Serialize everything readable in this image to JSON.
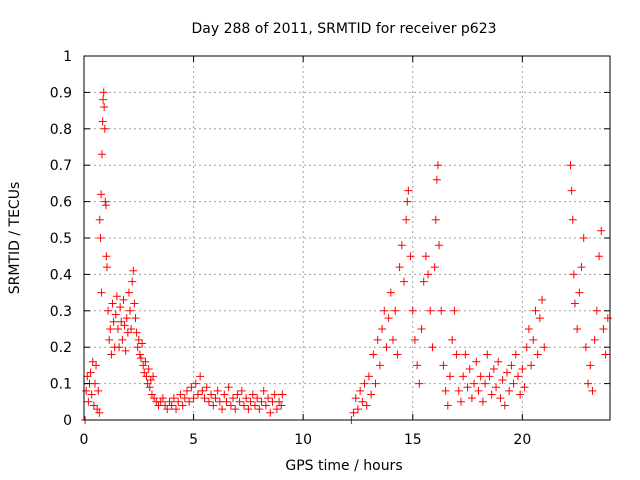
{
  "chart_data": {
    "type": "scatter",
    "title": "Day 288 of 2011, SRMTID for receiver p623",
    "xlabel": "GPS time / hours",
    "ylabel": "SRMTID / TECUs",
    "xlim": [
      0,
      24
    ],
    "ylim": [
      0,
      1
    ],
    "xticks": [
      0,
      5,
      10,
      15,
      20
    ],
    "yticks": [
      0,
      0.1,
      0.2,
      0.3,
      0.4,
      0.5,
      0.6,
      0.7,
      0.8,
      0.9,
      1
    ],
    "ytick_labels": [
      "0",
      "0.1",
      "0.2",
      "0.3",
      "0.4",
      "0.5",
      "0.6",
      "0.7",
      "0.8",
      "0.9",
      "1"
    ],
    "grid": true,
    "marker": "+",
    "marker_color": "#ff0000",
    "series": [
      {
        "name": "SRMTID",
        "points": [
          [
            0.05,
            0.0
          ],
          [
            0.1,
            0.08
          ],
          [
            0.15,
            0.12
          ],
          [
            0.2,
            0.05
          ],
          [
            0.25,
            0.1
          ],
          [
            0.3,
            0.13
          ],
          [
            0.35,
            0.07
          ],
          [
            0.4,
            0.16
          ],
          [
            0.45,
            0.04
          ],
          [
            0.5,
            0.1
          ],
          [
            0.55,
            0.15
          ],
          [
            0.6,
            0.03
          ],
          [
            0.65,
            0.08
          ],
          [
            0.7,
            0.02
          ],
          [
            0.72,
            0.55
          ],
          [
            0.75,
            0.5
          ],
          [
            0.78,
            0.62
          ],
          [
            0.8,
            0.35
          ],
          [
            0.82,
            0.73
          ],
          [
            0.85,
            0.82
          ],
          [
            0.87,
            0.88
          ],
          [
            0.9,
            0.9
          ],
          [
            0.92,
            0.86
          ],
          [
            0.95,
            0.8
          ],
          [
            0.97,
            0.6
          ],
          [
            1.0,
            0.59
          ],
          [
            1.02,
            0.45
          ],
          [
            1.05,
            0.42
          ],
          [
            1.1,
            0.3
          ],
          [
            1.15,
            0.22
          ],
          [
            1.2,
            0.25
          ],
          [
            1.25,
            0.18
          ],
          [
            1.3,
            0.32
          ],
          [
            1.35,
            0.27
          ],
          [
            1.4,
            0.2
          ],
          [
            1.45,
            0.29
          ],
          [
            1.5,
            0.34
          ],
          [
            1.55,
            0.25
          ],
          [
            1.6,
            0.2
          ],
          [
            1.65,
            0.31
          ],
          [
            1.7,
            0.27
          ],
          [
            1.75,
            0.22
          ],
          [
            1.8,
            0.33
          ],
          [
            1.85,
            0.26
          ],
          [
            1.9,
            0.19
          ],
          [
            1.95,
            0.28
          ],
          [
            2.0,
            0.24
          ],
          [
            2.05,
            0.35
          ],
          [
            2.1,
            0.3
          ],
          [
            2.15,
            0.25
          ],
          [
            2.2,
            0.38
          ],
          [
            2.25,
            0.41
          ],
          [
            2.3,
            0.32
          ],
          [
            2.35,
            0.28
          ],
          [
            2.4,
            0.24
          ],
          [
            2.45,
            0.2
          ],
          [
            2.5,
            0.22
          ],
          [
            2.55,
            0.18
          ],
          [
            2.6,
            0.17
          ],
          [
            2.65,
            0.21
          ],
          [
            2.7,
            0.15
          ],
          [
            2.75,
            0.13
          ],
          [
            2.8,
            0.16
          ],
          [
            2.85,
            0.12
          ],
          [
            2.9,
            0.1
          ],
          [
            2.95,
            0.14
          ],
          [
            3.0,
            0.09
          ],
          [
            3.05,
            0.11
          ],
          [
            3.1,
            0.07
          ],
          [
            3.15,
            0.12
          ],
          [
            3.2,
            0.06
          ],
          [
            3.3,
            0.05
          ],
          [
            3.4,
            0.04
          ],
          [
            3.5,
            0.05
          ],
          [
            3.6,
            0.06
          ],
          [
            3.7,
            0.04
          ],
          [
            3.8,
            0.03
          ],
          [
            3.9,
            0.05
          ],
          [
            4.0,
            0.04
          ],
          [
            4.1,
            0.06
          ],
          [
            4.2,
            0.03
          ],
          [
            4.3,
            0.05
          ],
          [
            4.4,
            0.07
          ],
          [
            4.5,
            0.04
          ],
          [
            4.6,
            0.06
          ],
          [
            4.7,
            0.08
          ],
          [
            4.8,
            0.05
          ],
          [
            4.9,
            0.09
          ],
          [
            5.0,
            0.06
          ],
          [
            5.1,
            0.1
          ],
          [
            5.2,
            0.07
          ],
          [
            5.3,
            0.12
          ],
          [
            5.4,
            0.08
          ],
          [
            5.5,
            0.06
          ],
          [
            5.6,
            0.09
          ],
          [
            5.7,
            0.05
          ],
          [
            5.8,
            0.07
          ],
          [
            5.9,
            0.04
          ],
          [
            6.0,
            0.06
          ],
          [
            6.1,
            0.08
          ],
          [
            6.2,
            0.05
          ],
          [
            6.3,
            0.03
          ],
          [
            6.4,
            0.07
          ],
          [
            6.5,
            0.05
          ],
          [
            6.6,
            0.09
          ],
          [
            6.7,
            0.04
          ],
          [
            6.8,
            0.06
          ],
          [
            6.9,
            0.03
          ],
          [
            7.0,
            0.07
          ],
          [
            7.1,
            0.05
          ],
          [
            7.2,
            0.08
          ],
          [
            7.3,
            0.04
          ],
          [
            7.4,
            0.06
          ],
          [
            7.5,
            0.03
          ],
          [
            7.6,
            0.05
          ],
          [
            7.7,
            0.07
          ],
          [
            7.8,
            0.04
          ],
          [
            7.9,
            0.06
          ],
          [
            8.0,
            0.03
          ],
          [
            8.1,
            0.05
          ],
          [
            8.2,
            0.08
          ],
          [
            8.3,
            0.04
          ],
          [
            8.4,
            0.06
          ],
          [
            8.5,
            0.02
          ],
          [
            8.6,
            0.05
          ],
          [
            8.7,
            0.07
          ],
          [
            8.8,
            0.03
          ],
          [
            8.9,
            0.05
          ],
          [
            9.0,
            0.04
          ],
          [
            9.05,
            0.07
          ],
          [
            12.2,
            0.0
          ],
          [
            12.3,
            0.02
          ],
          [
            12.4,
            0.06
          ],
          [
            12.5,
            0.03
          ],
          [
            12.6,
            0.08
          ],
          [
            12.7,
            0.05
          ],
          [
            12.8,
            0.1
          ],
          [
            12.9,
            0.04
          ],
          [
            13.0,
            0.12
          ],
          [
            13.1,
            0.07
          ],
          [
            13.2,
            0.18
          ],
          [
            13.3,
            0.1
          ],
          [
            13.4,
            0.22
          ],
          [
            13.5,
            0.15
          ],
          [
            13.6,
            0.25
          ],
          [
            13.7,
            0.3
          ],
          [
            13.8,
            0.2
          ],
          [
            13.9,
            0.28
          ],
          [
            14.0,
            0.35
          ],
          [
            14.1,
            0.22
          ],
          [
            14.2,
            0.3
          ],
          [
            14.3,
            0.18
          ],
          [
            14.4,
            0.42
          ],
          [
            14.5,
            0.48
          ],
          [
            14.6,
            0.38
          ],
          [
            14.7,
            0.55
          ],
          [
            14.75,
            0.6
          ],
          [
            14.8,
            0.63
          ],
          [
            14.9,
            0.45
          ],
          [
            15.0,
            0.3
          ],
          [
            15.1,
            0.22
          ],
          [
            15.2,
            0.15
          ],
          [
            15.3,
            0.1
          ],
          [
            15.4,
            0.25
          ],
          [
            15.5,
            0.38
          ],
          [
            15.6,
            0.45
          ],
          [
            15.7,
            0.4
          ],
          [
            15.8,
            0.3
          ],
          [
            15.9,
            0.2
          ],
          [
            16.0,
            0.42
          ],
          [
            16.05,
            0.55
          ],
          [
            16.1,
            0.66
          ],
          [
            16.15,
            0.7
          ],
          [
            16.2,
            0.48
          ],
          [
            16.3,
            0.3
          ],
          [
            16.4,
            0.15
          ],
          [
            16.5,
            0.08
          ],
          [
            16.6,
            0.04
          ],
          [
            16.7,
            0.12
          ],
          [
            16.8,
            0.22
          ],
          [
            16.9,
            0.3
          ],
          [
            17.0,
            0.18
          ],
          [
            17.1,
            0.08
          ],
          [
            17.2,
            0.05
          ],
          [
            17.3,
            0.12
          ],
          [
            17.4,
            0.18
          ],
          [
            17.5,
            0.09
          ],
          [
            17.6,
            0.14
          ],
          [
            17.7,
            0.06
          ],
          [
            17.8,
            0.1
          ],
          [
            17.9,
            0.16
          ],
          [
            18.0,
            0.08
          ],
          [
            18.1,
            0.12
          ],
          [
            18.2,
            0.05
          ],
          [
            18.3,
            0.1
          ],
          [
            18.4,
            0.18
          ],
          [
            18.5,
            0.12
          ],
          [
            18.6,
            0.07
          ],
          [
            18.7,
            0.14
          ],
          [
            18.8,
            0.09
          ],
          [
            18.9,
            0.16
          ],
          [
            19.0,
            0.06
          ],
          [
            19.1,
            0.11
          ],
          [
            19.2,
            0.04
          ],
          [
            19.3,
            0.13
          ],
          [
            19.4,
            0.08
          ],
          [
            19.5,
            0.15
          ],
          [
            19.6,
            0.1
          ],
          [
            19.7,
            0.18
          ],
          [
            19.8,
            0.12
          ],
          [
            19.9,
            0.07
          ],
          [
            20.0,
            0.14
          ],
          [
            20.1,
            0.09
          ],
          [
            20.2,
            0.2
          ],
          [
            20.3,
            0.25
          ],
          [
            20.4,
            0.15
          ],
          [
            20.5,
            0.22
          ],
          [
            20.6,
            0.3
          ],
          [
            20.7,
            0.18
          ],
          [
            20.8,
            0.28
          ],
          [
            20.9,
            0.33
          ],
          [
            21.0,
            0.2
          ],
          [
            22.2,
            0.7
          ],
          [
            22.25,
            0.63
          ],
          [
            22.3,
            0.55
          ],
          [
            22.35,
            0.4
          ],
          [
            22.4,
            0.32
          ],
          [
            22.5,
            0.25
          ],
          [
            22.6,
            0.35
          ],
          [
            22.7,
            0.42
          ],
          [
            22.8,
            0.5
          ],
          [
            22.9,
            0.2
          ],
          [
            23.0,
            0.1
          ],
          [
            23.1,
            0.15
          ],
          [
            23.2,
            0.08
          ],
          [
            23.3,
            0.22
          ],
          [
            23.4,
            0.3
          ],
          [
            23.5,
            0.45
          ],
          [
            23.6,
            0.52
          ],
          [
            23.7,
            0.25
          ],
          [
            23.8,
            0.18
          ],
          [
            23.9,
            0.28
          ]
        ]
      }
    ]
  }
}
